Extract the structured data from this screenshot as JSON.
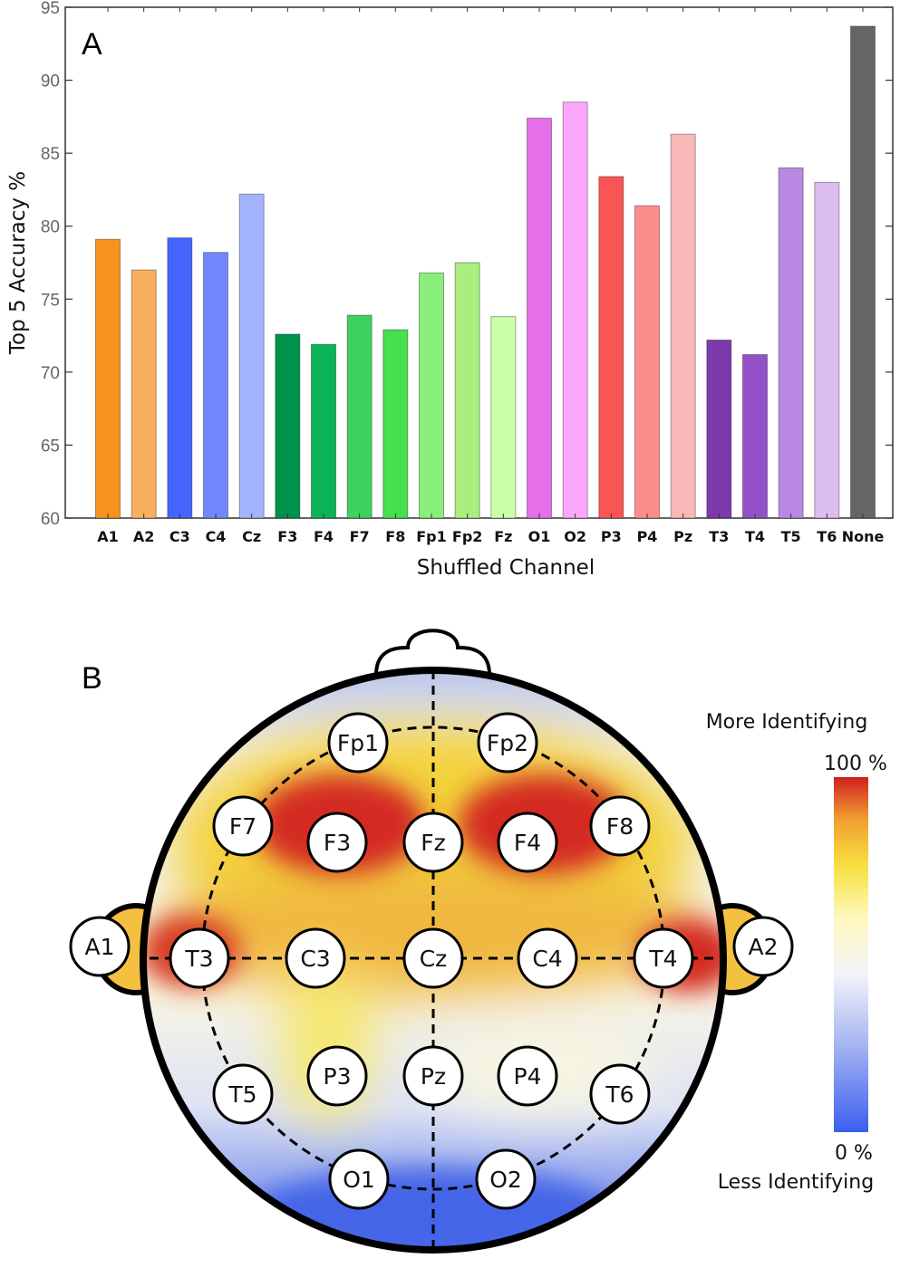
{
  "chart_data": [
    {
      "type": "bar",
      "panel_label": "A",
      "xlabel": "Shuffled Channel",
      "ylabel": "Top 5 Accuracy %",
      "ylim": [
        60,
        95
      ],
      "yticks": [
        60,
        65,
        70,
        75,
        80,
        85,
        90,
        95
      ],
      "grid": false,
      "categories": [
        "A1",
        "A2",
        "C3",
        "C4",
        "Cz",
        "F3",
        "F4",
        "F7",
        "F8",
        "Fp1",
        "Fp2",
        "Fz",
        "O1",
        "O2",
        "P3",
        "P4",
        "Pz",
        "T3",
        "T4",
        "T5",
        "T6",
        "None"
      ],
      "values": [
        79.1,
        77.0,
        79.2,
        78.2,
        82.2,
        72.6,
        71.9,
        73.9,
        72.9,
        76.8,
        77.5,
        73.8,
        87.4,
        88.5,
        83.4,
        81.4,
        86.3,
        72.2,
        71.2,
        84.0,
        83.0,
        93.7
      ],
      "colors": [
        "#f7931e",
        "#f6b060",
        "#4466ff",
        "#7188fc",
        "#a3b4fd",
        "#00914a",
        "#0bb356",
        "#3fd15e",
        "#45e04e",
        "#88f07a",
        "#aaee80",
        "#ccffaa",
        "#e56fe8",
        "#fba8fc",
        "#fa5555",
        "#fd8c8c",
        "#f9b8b8",
        "#7d3aad",
        "#9350c8",
        "#b988e2",
        "#dcbdf2",
        "#666666"
      ]
    },
    {
      "type": "heatmap",
      "panel_label": "B",
      "electrodes": [
        "Fp1",
        "Fp2",
        "F7",
        "F3",
        "Fz",
        "F4",
        "F8",
        "A1",
        "T3",
        "C3",
        "Cz",
        "C4",
        "T4",
        "A2",
        "T5",
        "P3",
        "Pz",
        "P4",
        "T6",
        "O1",
        "O2"
      ],
      "colorbar": {
        "top_label": "More Identifying",
        "max_label": "100 %",
        "min_label": "0 %",
        "bottom_label": "Less Identifying",
        "colors": [
          "#3b5ef0",
          "#a8b6f2",
          "#f6f4fa",
          "#fff9c0",
          "#f7e040",
          "#f0a030",
          "#d02020"
        ]
      }
    }
  ]
}
